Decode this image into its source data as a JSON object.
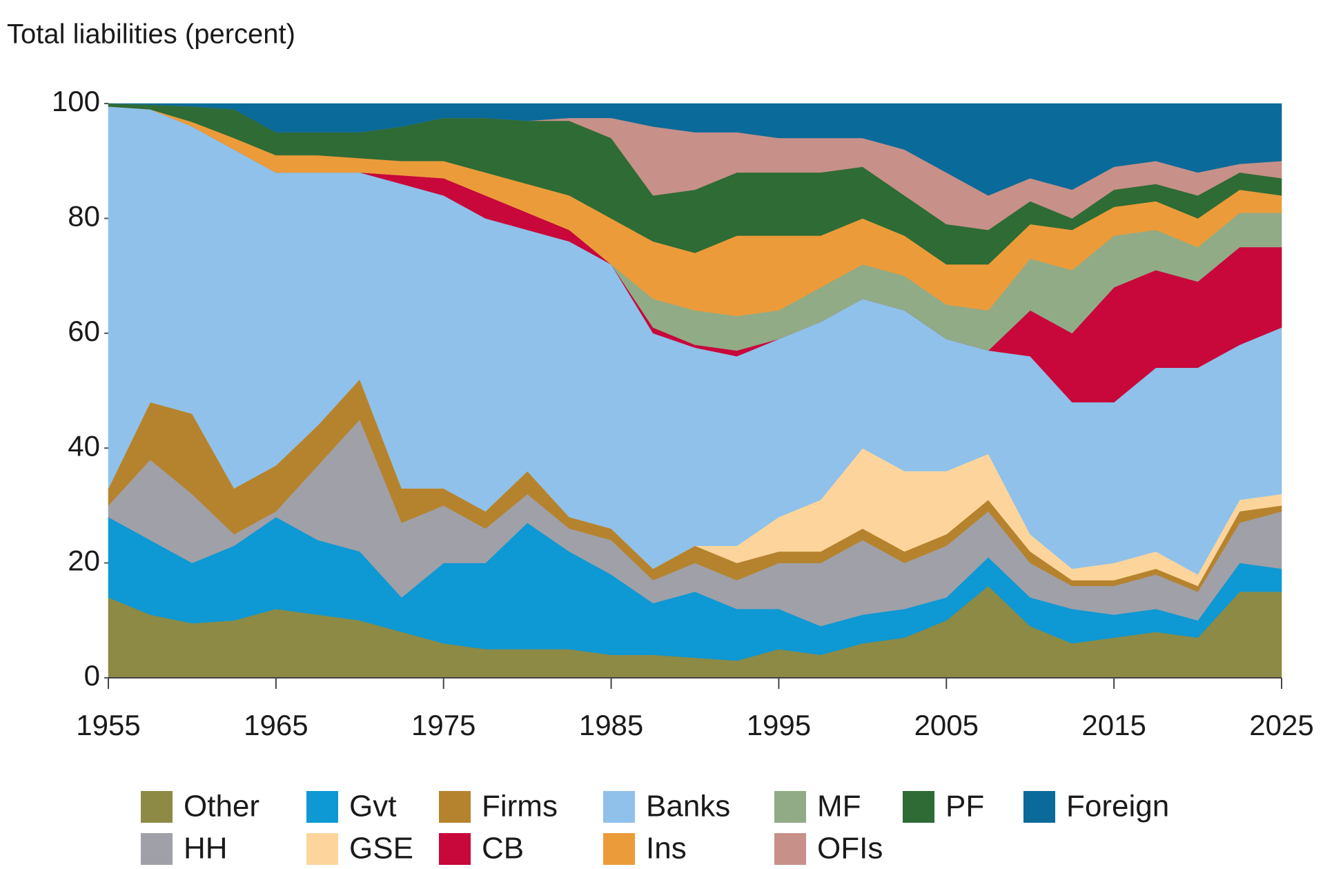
{
  "chart_data": {
    "type": "stacked_area",
    "y_axis_label": "Total liabilities (percent)",
    "x": [
      1955,
      1957.5,
      1960,
      1962.5,
      1965,
      1967.5,
      1970,
      1972.5,
      1975,
      1977.5,
      1980,
      1982.5,
      1985,
      1987.5,
      1990,
      1992.5,
      1995,
      1997.5,
      2000,
      2002.5,
      2005,
      2007.5,
      2010,
      2012.5,
      2015,
      2017.5,
      2020,
      2022.5,
      2025
    ],
    "xlim": [
      1955,
      2025
    ],
    "xticks": [
      1955,
      1965,
      1975,
      1985,
      1995,
      2005,
      2015,
      2025
    ],
    "ylim": [
      0,
      100
    ],
    "yticks": [
      0,
      20,
      40,
      60,
      80,
      100
    ],
    "legend": "bottom",
    "series": [
      {
        "name": "Other",
        "color": "#8c8a45",
        "values": [
          14,
          11,
          9.5,
          10,
          12,
          11,
          10,
          8,
          6,
          5,
          5,
          5,
          4,
          4,
          3.5,
          3,
          5,
          4,
          6,
          7,
          10,
          16,
          9,
          6,
          7,
          8,
          7,
          15,
          15
        ]
      },
      {
        "name": "Gvt",
        "color": "#0e98d4",
        "values": [
          14,
          13,
          10.5,
          13,
          16,
          13,
          12,
          6,
          14,
          15,
          22,
          17,
          14,
          9,
          11.5,
          9,
          7,
          5,
          5,
          5,
          4,
          5,
          5,
          6,
          4,
          4,
          3,
          5,
          4
        ]
      },
      {
        "name": "HH",
        "color": "#a0a0a8",
        "values": [
          2,
          14,
          12,
          2,
          1,
          13,
          23,
          13,
          10,
          6,
          5,
          4,
          6,
          4,
          5,
          5,
          8,
          11,
          13,
          8,
          9,
          8,
          6,
          4,
          5,
          6,
          5,
          7,
          10
        ]
      },
      {
        "name": "Firms",
        "color": "#b5832e",
        "values": [
          3,
          10,
          14,
          8,
          8,
          7,
          7,
          6,
          3,
          3,
          4,
          2,
          2,
          2,
          3,
          3,
          2,
          2,
          2,
          2,
          2,
          2,
          2,
          1,
          1,
          1,
          1,
          2,
          1
        ]
      },
      {
        "name": "GSE",
        "color": "#fdd59c",
        "values": [
          0,
          0,
          0,
          0,
          0,
          0,
          0,
          0,
          0,
          0,
          0,
          0,
          0,
          0,
          0,
          3,
          6,
          9,
          14,
          14,
          11,
          8,
          3,
          2,
          3,
          3,
          2,
          2,
          2
        ]
      },
      {
        "name": "Banks",
        "color": "#8fc1ea",
        "values": [
          66.5,
          51,
          50,
          59,
          51,
          44,
          36,
          53,
          51,
          51,
          42,
          48,
          46,
          41,
          34.5,
          33,
          31,
          31,
          26,
          28,
          23,
          18,
          31,
          29,
          28,
          32,
          36,
          27,
          29
        ]
      },
      {
        "name": "CB",
        "color": "#c8073a",
        "values": [
          0,
          0,
          0,
          0,
          0,
          0,
          0,
          1.5,
          3,
          4,
          3,
          2,
          0,
          1,
          0.5,
          1,
          0,
          0,
          0,
          0,
          0,
          0,
          8,
          12,
          20,
          17,
          15,
          17,
          14
        ]
      },
      {
        "name": "MF",
        "color": "#91ab86",
        "values": [
          0,
          0,
          0,
          0,
          0,
          0,
          0,
          0,
          0,
          0,
          0,
          0,
          0,
          5,
          6,
          6,
          5,
          6,
          6,
          6,
          6,
          7,
          9,
          11,
          9,
          7,
          6,
          6,
          6
        ]
      },
      {
        "name": "Ins",
        "color": "#ec9b3a",
        "values": [
          0,
          0,
          0.8,
          2,
          3,
          3,
          2.5,
          2.5,
          3,
          4,
          5,
          6,
          8,
          10,
          10,
          14,
          13,
          9,
          8,
          7,
          7,
          8,
          6,
          7,
          5,
          5,
          5,
          4,
          3
        ]
      },
      {
        "name": "PF",
        "color": "#2e6b35",
        "values": [
          0.5,
          0.8,
          2.7,
          5,
          4,
          4,
          4.5,
          6,
          7.5,
          9.5,
          11,
          13,
          14,
          8,
          11,
          11,
          11,
          11,
          9,
          7,
          7,
          6,
          4,
          2,
          3,
          3,
          4,
          3,
          3
        ]
      },
      {
        "name": "OFIs",
        "color": "#c79088",
        "values": [
          0,
          0,
          0,
          0,
          0,
          0,
          0,
          0,
          0,
          0,
          0,
          0.5,
          3.5,
          12,
          10,
          7,
          6,
          6,
          5,
          8,
          9,
          6,
          4,
          5,
          4,
          4,
          4,
          1.5,
          3
        ]
      },
      {
        "name": "Foreign",
        "color": "#0a6a99",
        "values": [
          0,
          0.2,
          0.5,
          1,
          5,
          5,
          5,
          4,
          2.5,
          2.5,
          3,
          2.5,
          2.5,
          4,
          5,
          5,
          6,
          6,
          6,
          8,
          12,
          16,
          13,
          15,
          11,
          10,
          12,
          10.5,
          10
        ]
      }
    ]
  }
}
